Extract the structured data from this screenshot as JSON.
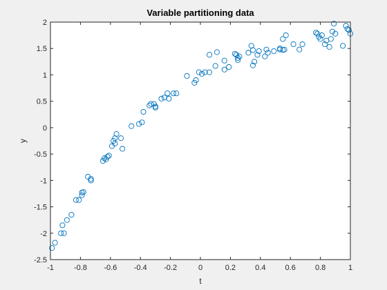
{
  "chart_data": {
    "type": "scatter",
    "title": "Variable partitioning data",
    "xlabel": "t",
    "ylabel": "y",
    "xlim": [
      -1,
      1
    ],
    "ylim": [
      -2.5,
      2
    ],
    "xticks": [
      -1,
      -0.8,
      -0.6,
      -0.4,
      -0.2,
      0,
      0.2,
      0.4,
      0.6,
      0.8,
      1
    ],
    "xtick_labels": [
      "-1",
      "-0.8",
      "-0.6",
      "-0.4",
      "-0.2",
      "0",
      "0.2",
      "0.4",
      "0.6",
      "0.8",
      "1"
    ],
    "yticks": [
      -2.5,
      -2,
      -1.5,
      -1,
      -0.5,
      0,
      0.5,
      1,
      1.5,
      2
    ],
    "ytick_labels": [
      "-2.5",
      "-2",
      "-1.5",
      "-1",
      "-0.5",
      "0",
      "0.5",
      "1",
      "1.5",
      "2"
    ],
    "grid": false,
    "legend": false,
    "marker": "open-circle",
    "marker_color": "#0072bd",
    "axis_color": "#262626",
    "series": [
      {
        "x": [
          -0.99,
          -0.97,
          -0.93,
          -0.92,
          -0.91,
          -0.89,
          -0.86,
          -0.83,
          -0.81,
          -0.79,
          -0.79,
          -0.78,
          -0.75,
          -0.73,
          -0.73,
          -0.65,
          -0.64,
          -0.63,
          -0.62,
          -0.61,
          -0.59,
          -0.58,
          -0.57,
          -0.57,
          -0.56,
          -0.53,
          -0.52,
          -0.46,
          -0.41,
          -0.39,
          -0.38,
          -0.34,
          -0.33,
          -0.31,
          -0.3,
          -0.3,
          -0.26,
          -0.24,
          -0.22,
          -0.21,
          -0.18,
          -0.16,
          -0.09,
          -0.04,
          -0.03,
          -0.01,
          0.01,
          0.03,
          0.06,
          0.06,
          0.1,
          0.11,
          0.16,
          0.16,
          0.19,
          0.23,
          0.24,
          0.25,
          0.25,
          0.26,
          0.32,
          0.34,
          0.35,
          0.35,
          0.36,
          0.38,
          0.39,
          0.43,
          0.44,
          0.45,
          0.49,
          0.53,
          0.53,
          0.55,
          0.55,
          0.56,
          0.57,
          0.62,
          0.66,
          0.68,
          0.77,
          0.78,
          0.79,
          0.8,
          0.81,
          0.83,
          0.84,
          0.86,
          0.87,
          0.88,
          0.89,
          0.9,
          0.95,
          0.97,
          0.98,
          0.99,
          1.0
        ],
        "y": [
          -2.28,
          -2.18,
          -2.0,
          -1.85,
          -2.0,
          -1.75,
          -1.65,
          -1.37,
          -1.37,
          -1.23,
          -1.28,
          -1.22,
          -0.93,
          -0.97,
          -1.0,
          -0.63,
          -0.58,
          -0.6,
          -0.55,
          -0.53,
          -0.35,
          -0.25,
          -0.3,
          -0.2,
          -0.12,
          -0.2,
          -0.4,
          0.03,
          0.07,
          0.1,
          0.3,
          0.42,
          0.45,
          0.45,
          0.4,
          0.38,
          0.55,
          0.57,
          0.65,
          0.55,
          0.65,
          0.65,
          0.98,
          0.85,
          0.9,
          1.05,
          1.02,
          1.05,
          1.05,
          1.38,
          1.17,
          1.43,
          1.1,
          1.27,
          1.15,
          1.4,
          1.38,
          1.32,
          1.28,
          1.35,
          1.42,
          1.55,
          1.47,
          1.18,
          1.25,
          1.38,
          1.45,
          1.35,
          1.48,
          1.42,
          1.45,
          1.48,
          1.5,
          1.47,
          1.68,
          1.48,
          1.75,
          1.58,
          1.48,
          1.58,
          1.8,
          1.78,
          1.72,
          1.68,
          1.75,
          1.58,
          1.65,
          1.53,
          1.68,
          1.82,
          1.97,
          1.78,
          1.55,
          1.93,
          1.87,
          1.85,
          1.78
        ]
      }
    ]
  }
}
